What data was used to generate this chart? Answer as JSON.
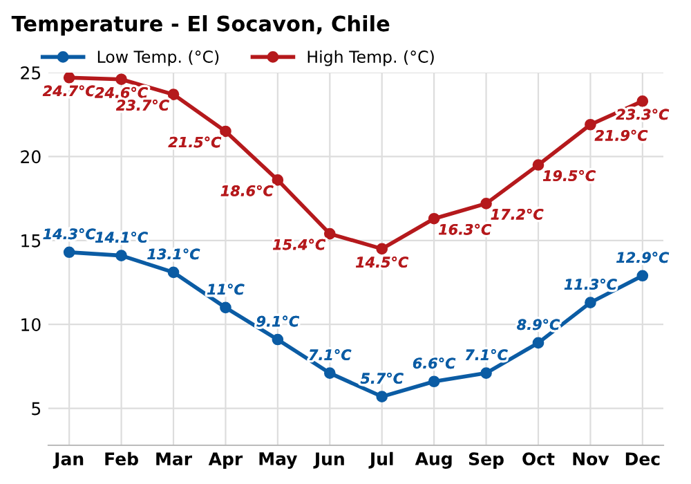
{
  "chart_data": {
    "type": "line",
    "title": "Temperature - El Socavon, Chile",
    "categories": [
      "Jan",
      "Feb",
      "Mar",
      "Apr",
      "May",
      "Jun",
      "Jul",
      "Aug",
      "Sep",
      "Oct",
      "Nov",
      "Dec"
    ],
    "series": [
      {
        "name": "Low Temp. (°C)",
        "color": "#0b5ca4",
        "values": [
          14.3,
          14.1,
          13.1,
          11,
          9.1,
          7.1,
          5.7,
          6.6,
          7.1,
          8.9,
          11.3,
          12.9
        ],
        "value_labels": [
          "14.3°C",
          "14.1°C",
          "13.1°C",
          "11°C",
          "9.1°C",
          "7.1°C",
          "5.7°C",
          "6.6°C",
          "7.1°C",
          "8.9°C",
          "11.3°C",
          "12.9°C"
        ]
      },
      {
        "name": "High Temp. (°C)",
        "color": "#b5191c",
        "values": [
          24.7,
          24.6,
          23.7,
          21.5,
          18.6,
          15.4,
          14.5,
          16.3,
          17.2,
          19.5,
          21.9,
          23.3
        ],
        "value_labels": [
          "24.7°C",
          "24.6°C",
          "23.7°C",
          "21.5°C",
          "18.6°C",
          "15.4°C",
          "14.5°C",
          "16.3°C",
          "17.2°C",
          "19.5°C",
          "21.9°C",
          "23.3°C"
        ]
      }
    ],
    "ylim": [
      2.8,
      25
    ],
    "yticks": [
      5,
      10,
      15,
      20,
      25
    ],
    "grid": true,
    "legend": "top left",
    "marker": "circle",
    "line_style": "solid"
  }
}
